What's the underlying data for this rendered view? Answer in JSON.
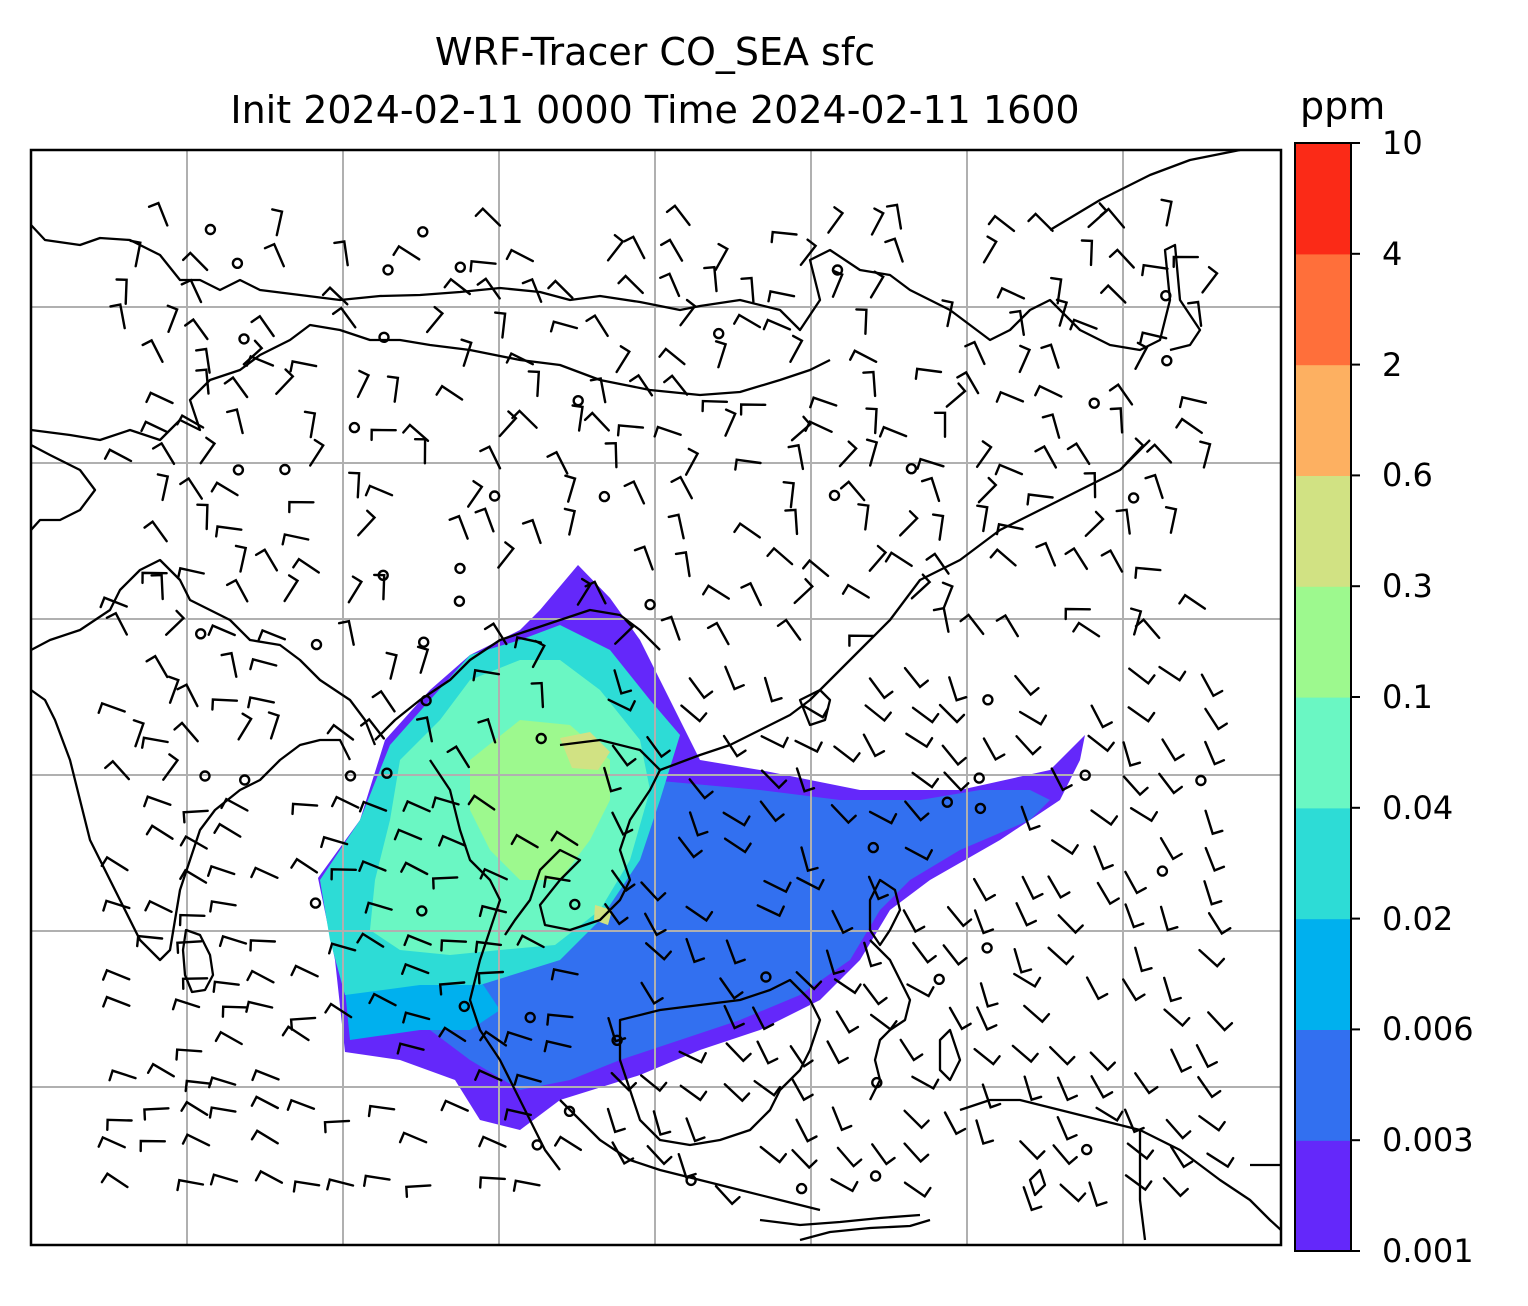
{
  "title": {
    "line1": "WRF-Tracer CO_SEA sfc",
    "line2": "Init 2024-02-11 0000 Time 2024-02-11 1600"
  },
  "colorbar": {
    "unit": "ppm",
    "levels": [
      "0.001",
      "0.003",
      "0.006",
      "0.02",
      "0.04",
      "0.1",
      "0.3",
      "0.6",
      "2",
      "4",
      "10"
    ],
    "colors": [
      "#6428fa",
      "#3270f0",
      "#00b0ee",
      "#2ddcd6",
      "#6af7c3",
      "#9df98e",
      "#d1e283",
      "#fdb061",
      "#ff6f3a",
      "#fb2a17"
    ]
  },
  "map": {
    "type": "contour-map",
    "variable": "CO_SEA tracer, surface",
    "features": [
      "coastlines",
      "gridlines",
      "wind-barbs",
      "calm-wind-circles",
      "filled-contours"
    ],
    "coastline_color": "#000000",
    "gridline_color": "#b0b0b0"
  }
}
